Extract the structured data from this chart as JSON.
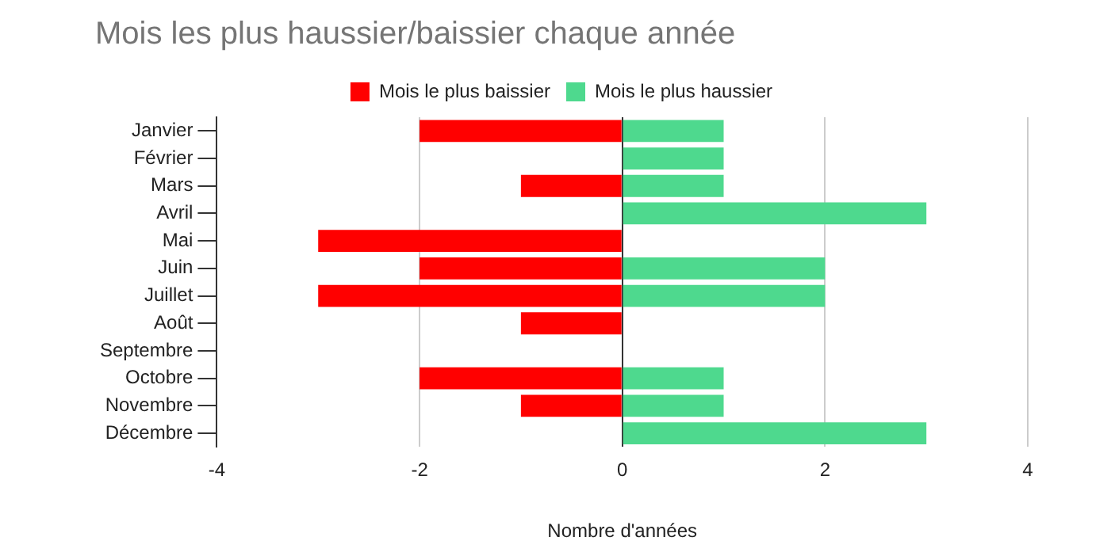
{
  "chart_data": {
    "type": "bar",
    "orientation": "horizontal",
    "stacked": true,
    "title": "Mois les plus haussier/baissier chaque année",
    "xlabel": "Nombre d'années",
    "categories": [
      "Janvier",
      "Février",
      "Mars",
      "Avril",
      "Mai",
      "Juin",
      "Juillet",
      "Août",
      "Septembre",
      "Octobre",
      "Novembre",
      "Décembre"
    ],
    "series": [
      {
        "name": "Mois le plus baissier",
        "color": "#ff0000",
        "values": [
          -2,
          null,
          -1,
          null,
          -3,
          -2,
          -3,
          -1,
          null,
          -2,
          -1,
          null
        ]
      },
      {
        "name": "Mois le plus haussier",
        "color": "#4ed98e",
        "values": [
          1,
          1,
          1,
          3,
          null,
          2,
          2,
          null,
          null,
          1,
          1,
          3
        ]
      }
    ],
    "xlim": [
      -4,
      4
    ],
    "xticks": [
      -4,
      -2,
      0,
      2,
      4
    ],
    "grid": "x",
    "legend": "top"
  }
}
